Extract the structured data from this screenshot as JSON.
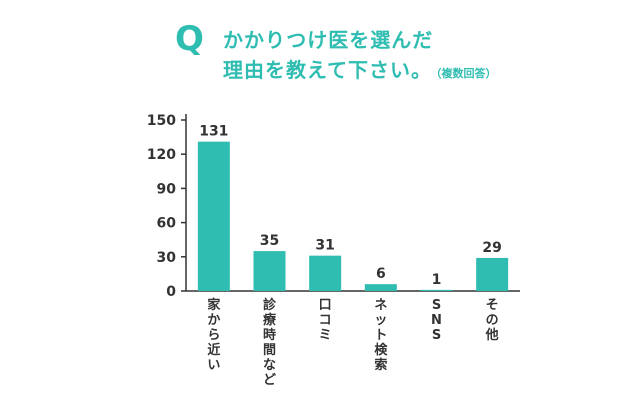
{
  "title": {
    "q": "Q",
    "line1": "かかりつけ医を選んだ",
    "line2": "理由を教えて下さい。",
    "note": "（複数回答）"
  },
  "chart_data": {
    "type": "bar",
    "categories": [
      "家から近い",
      "診療時間など",
      "口コミ",
      "ネット検索",
      "SNS",
      "その他"
    ],
    "values": [
      131,
      35,
      31,
      6,
      1,
      29
    ],
    "ylim": [
      0,
      150
    ],
    "yticks": [
      0,
      30,
      60,
      90,
      120,
      150
    ],
    "bar_color": "#2fbdb1",
    "grid": false
  }
}
